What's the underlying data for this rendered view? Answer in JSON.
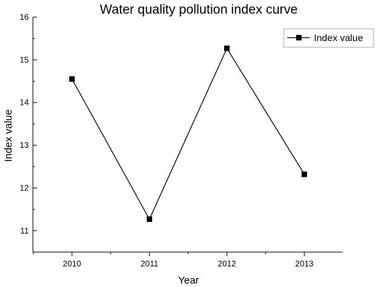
{
  "chart_data": {
    "type": "line",
    "title": "Water quality pollution index curve",
    "xlabel": "Year",
    "ylabel": "Index value",
    "categories": [
      "2010",
      "2011",
      "2012",
      "2013"
    ],
    "series": [
      {
        "name": "Index value",
        "values": [
          14.55,
          11.27,
          15.27,
          12.32
        ],
        "color": "#000000",
        "marker": "square"
      }
    ],
    "ylim": [
      10.5,
      16
    ],
    "yticks": [
      11,
      12,
      13,
      14,
      15,
      16
    ],
    "grid": false,
    "legend_position": "top-right"
  }
}
